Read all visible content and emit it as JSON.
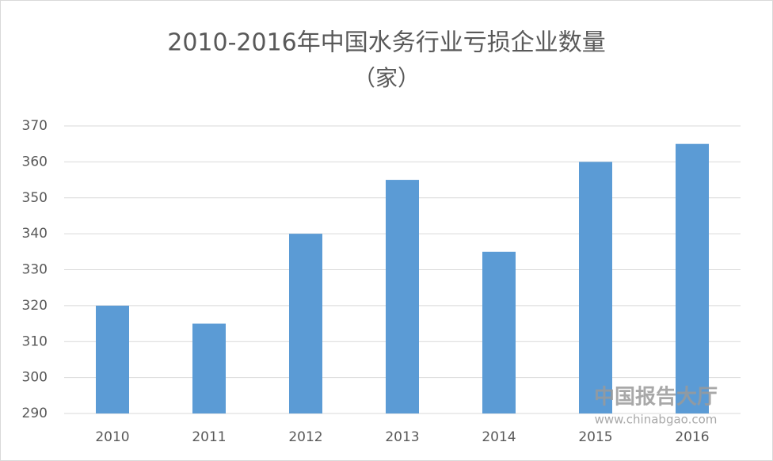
{
  "chart_data": {
    "type": "bar",
    "title": "2010-2016年中国水务行业亏损企业数量",
    "subtitle": "（家）",
    "categories": [
      "2010",
      "2011",
      "2012",
      "2013",
      "2014",
      "2015",
      "2016"
    ],
    "values": [
      320,
      315,
      340,
      355,
      335,
      360,
      365
    ],
    "color": "#5b9bd5",
    "ylim": [
      290,
      370
    ],
    "yticks": [
      290,
      300,
      310,
      320,
      330,
      340,
      350,
      360,
      370
    ],
    "grid": true,
    "watermark": {
      "name": "中国报告大厅",
      "url": "www.chinabgao.com"
    }
  }
}
